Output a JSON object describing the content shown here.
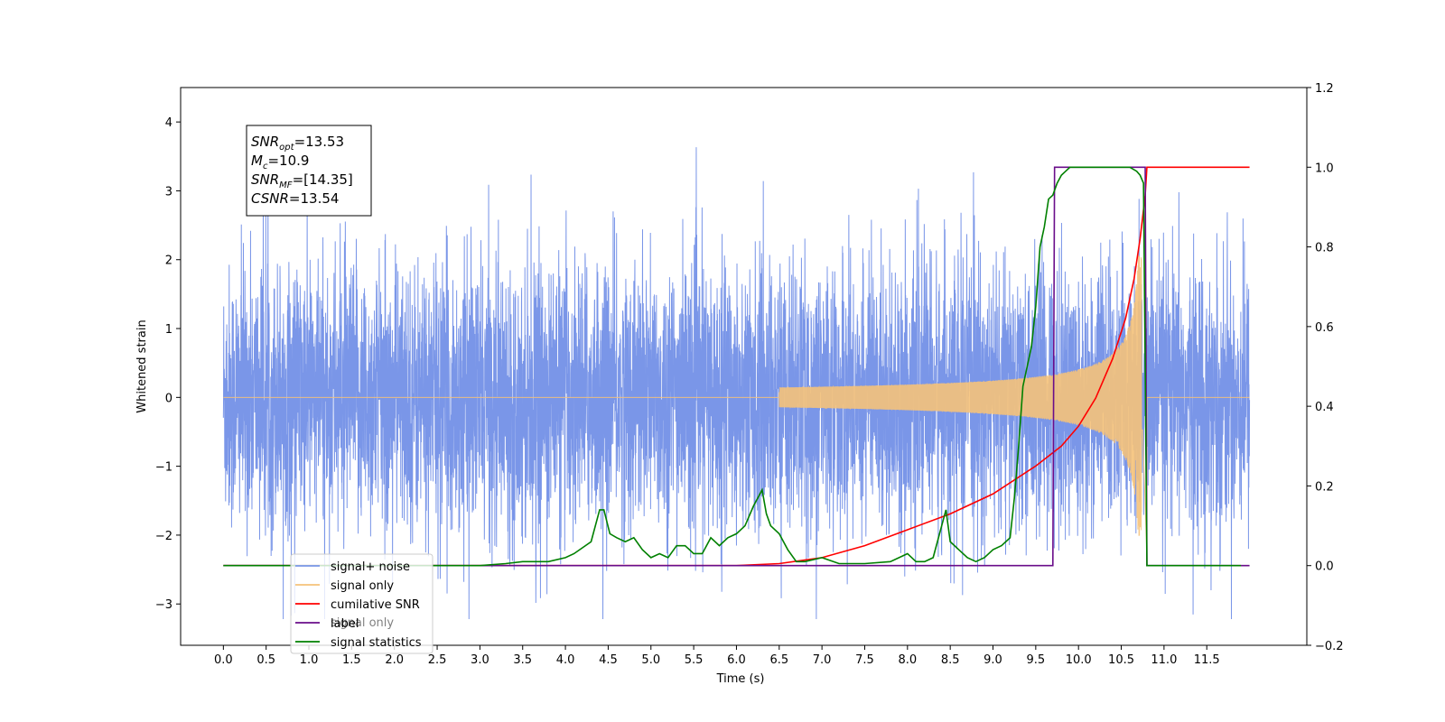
{
  "chart_data": {
    "type": "line",
    "xlabel": "Time (s)",
    "ylabel": "Whitened strain",
    "xlim": [
      -0.5,
      12.67
    ],
    "ylim_left": [
      -3.6,
      4.5
    ],
    "ylim_right": [
      -0.2,
      1.2
    ],
    "x_ticks": [
      "0.0",
      "0.5",
      "1.0",
      "1.5",
      "2.0",
      "2.5",
      "3.0",
      "3.5",
      "4.0",
      "4.5",
      "5.0",
      "5.5",
      "6.0",
      "6.5",
      "7.0",
      "7.5",
      "8.0",
      "8.5",
      "9.0",
      "9.5",
      "10.0",
      "10.5",
      "11.0",
      "11.5"
    ],
    "y_ticks_left": [
      "−3",
      "−2",
      "−1",
      "0",
      "1",
      "2",
      "3",
      "4"
    ],
    "y_ticks_right": [
      "−0.2",
      "0.0",
      "0.2",
      "0.4",
      "0.6",
      "0.8",
      "1.0",
      "1.2"
    ],
    "annotation": [
      {
        "base": "SNR",
        "sub": "opt",
        "value": "=13.53"
      },
      {
        "base": "M",
        "sub": "c",
        "value": "=10.9"
      },
      {
        "base": "SNR",
        "sub": "MF",
        "value": "=[14.35]"
      },
      {
        "base": "CSNR",
        "sub": "",
        "value": "=13.54"
      }
    ],
    "legend": [
      {
        "label": "signal+ noise",
        "color": "#7a96e8"
      },
      {
        "label": "signal only",
        "color": "#f5c27a"
      },
      {
        "label": "cumilative SNR",
        "color": "#ff0000"
      },
      {
        "label": "label",
        "color": "#6a0d8a"
      },
      {
        "label": "signal statistics",
        "color": "#008000"
      }
    ],
    "ghost_legend": [
      {
        "label": "signal only"
      }
    ],
    "series": [
      {
        "name": "signal+ noise",
        "axis": "left",
        "color": "#7a96e8",
        "description_range": {
          "x": [
            0.0,
            12.0
          ],
          "typical_amplitude": [
            -2.4,
            2.6
          ],
          "max": 4.12,
          "min": -3.22
        }
      },
      {
        "name": "signal only",
        "axis": "left",
        "color": "#f5c27a",
        "chirp": {
          "start": 6.5,
          "merger": 10.75,
          "end": 10.8,
          "peak_amplitude": 2.3
        }
      },
      {
        "name": "cumilative SNR",
        "axis": "right",
        "color": "#ff0000",
        "x": [
          0.0,
          6.0,
          6.5,
          7.0,
          7.5,
          8.0,
          8.5,
          9.0,
          9.5,
          9.8,
          10.0,
          10.2,
          10.4,
          10.55,
          10.65,
          10.72,
          10.78,
          10.8,
          12.0
        ],
        "y": [
          0.0,
          0.0,
          0.005,
          0.02,
          0.05,
          0.09,
          0.13,
          0.18,
          0.25,
          0.3,
          0.35,
          0.42,
          0.52,
          0.62,
          0.72,
          0.82,
          0.93,
          1.0,
          1.0
        ]
      },
      {
        "name": "label",
        "axis": "right",
        "color": "#6a0d8a",
        "x": [
          0.0,
          9.7,
          9.72,
          10.78,
          10.8,
          12.0
        ],
        "y": [
          0.0,
          0.0,
          1.0,
          1.0,
          0.0,
          0.0
        ]
      },
      {
        "name": "signal statistics",
        "axis": "right",
        "color": "#008000",
        "x": [
          0.0,
          3.0,
          3.3,
          3.5,
          3.8,
          4.0,
          4.1,
          4.3,
          4.4,
          4.45,
          4.52,
          4.6,
          4.7,
          4.8,
          4.9,
          5.0,
          5.1,
          5.2,
          5.3,
          5.4,
          5.5,
          5.6,
          5.7,
          5.8,
          5.9,
          6.0,
          6.1,
          6.2,
          6.3,
          6.35,
          6.4,
          6.5,
          6.6,
          6.7,
          6.8,
          7.0,
          7.2,
          7.5,
          7.8,
          8.0,
          8.1,
          8.2,
          8.3,
          8.4,
          8.45,
          8.5,
          8.55,
          8.6,
          8.7,
          8.8,
          8.9,
          9.0,
          9.1,
          9.2,
          9.25,
          9.3,
          9.35,
          9.4,
          9.45,
          9.5,
          9.55,
          9.6,
          9.65,
          9.7,
          9.75,
          9.8,
          9.85,
          9.9,
          10.0,
          10.2,
          10.4,
          10.6,
          10.68,
          10.72,
          10.76,
          10.78,
          10.8,
          11.0,
          11.9
        ],
        "y": [
          0.0,
          0.0,
          0.005,
          0.01,
          0.01,
          0.02,
          0.03,
          0.06,
          0.14,
          0.14,
          0.08,
          0.07,
          0.06,
          0.07,
          0.04,
          0.02,
          0.03,
          0.02,
          0.05,
          0.05,
          0.03,
          0.03,
          0.07,
          0.05,
          0.07,
          0.08,
          0.1,
          0.15,
          0.19,
          0.13,
          0.1,
          0.08,
          0.04,
          0.01,
          0.01,
          0.02,
          0.005,
          0.005,
          0.01,
          0.03,
          0.01,
          0.01,
          0.02,
          0.1,
          0.14,
          0.06,
          0.05,
          0.04,
          0.02,
          0.01,
          0.02,
          0.04,
          0.05,
          0.07,
          0.17,
          0.3,
          0.45,
          0.5,
          0.55,
          0.65,
          0.8,
          0.85,
          0.92,
          0.93,
          0.96,
          0.98,
          0.99,
          1.0,
          1.0,
          1.0,
          1.0,
          1.0,
          0.99,
          0.98,
          0.96,
          0.5,
          0.0,
          0.0,
          0.0
        ]
      }
    ]
  }
}
